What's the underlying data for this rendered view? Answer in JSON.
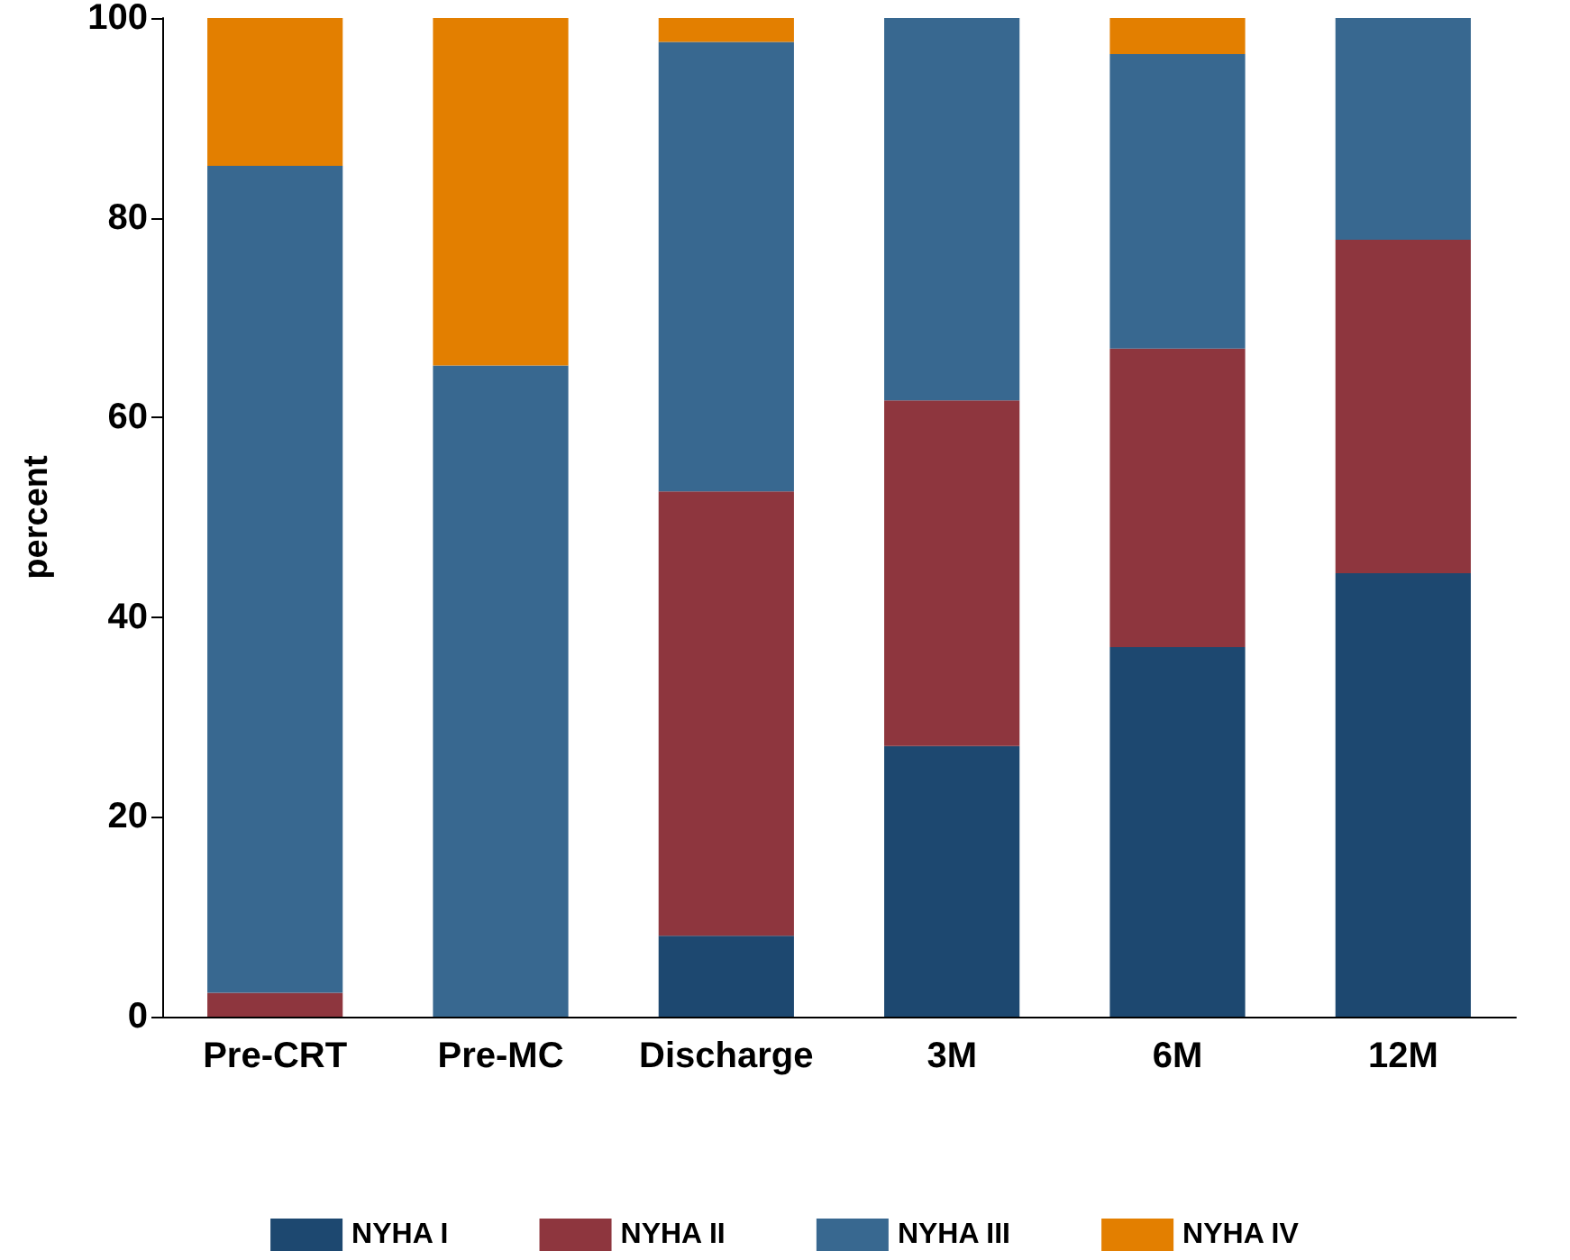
{
  "chart_data": {
    "type": "bar",
    "stacked": true,
    "ylabel": "percent",
    "categories": [
      "Pre-CRT",
      "Pre-MC",
      "Discharge",
      "3M",
      "6M",
      "12M"
    ],
    "series": [
      {
        "name": "NYHA I",
        "color": "#1d4870",
        "values": [
          0,
          0,
          8.1,
          27.1,
          37.0,
          44.4
        ]
      },
      {
        "name": "NYHA II",
        "color": "#8e363e",
        "values": [
          2.4,
          0,
          44.5,
          34.6,
          29.9,
          33.4
        ]
      },
      {
        "name": "NYHA III",
        "color": "#386890",
        "values": [
          82.8,
          65.2,
          45.0,
          38.3,
          29.5,
          22.2
        ]
      },
      {
        "name": "NYHA IV",
        "color": "#e37f00",
        "values": [
          14.8,
          34.8,
          2.4,
          0,
          3.6,
          0
        ]
      }
    ],
    "ylim": [
      0,
      100
    ],
    "yticks": [
      0,
      20,
      40,
      60,
      80,
      100
    ],
    "grid": false,
    "legend": "bottom"
  }
}
